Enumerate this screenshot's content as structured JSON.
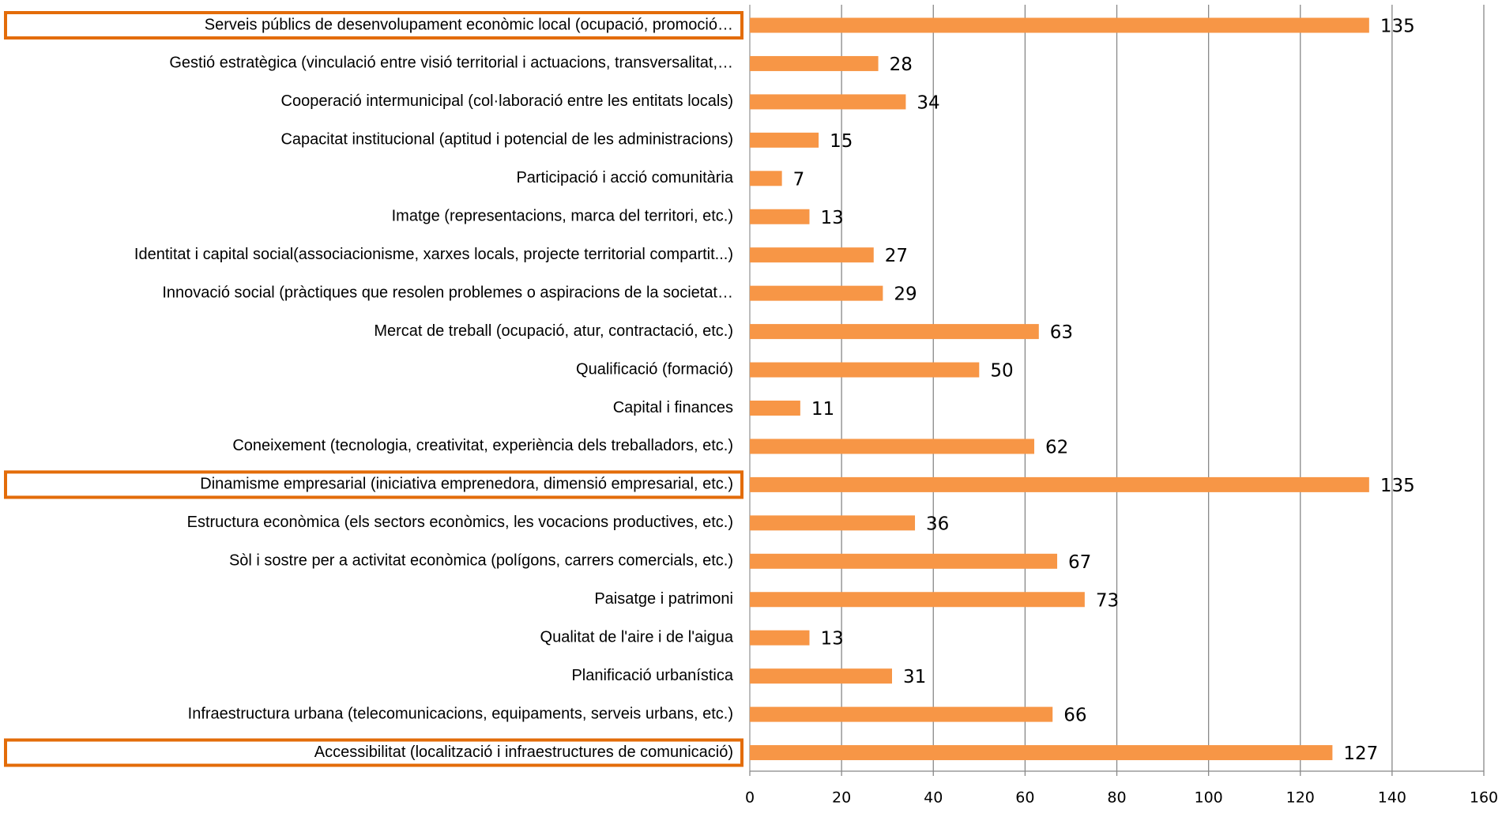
{
  "chart_data": {
    "type": "barh",
    "categories": [
      "Serveis públics de desenvolupament econòmic local (ocupació, promoció…",
      "Gestió estratègica (vinculació entre visió territorial i actuacions, transversalitat,…",
      "Cooperació intermunicipal (col·laboració entre les entitats locals)",
      "Capacitat institucional (aptitud i potencial de les administracions)",
      "Participació i acció comunitària",
      "Imatge (representacions, marca del territori, etc.)",
      "Identitat i capital social(associacionisme, xarxes locals, projecte territorial compartit...)",
      "Innovació social (pràctiques que resolen problemes o aspiracions de la societat…",
      "Mercat de treball (ocupació, atur, contractació, etc.)",
      "Qualificació (formació)",
      "Capital i finances",
      "Coneixement (tecnologia, creativitat, experiència dels treballadors, etc.)",
      "Dinamisme empresarial (iniciativa emprenedora, dimensió empresarial, etc.)",
      "Estructura econòmica (els sectors econòmics, les vocacions productives, etc.)",
      "Sòl i sostre per a activitat econòmica (polígons, carrers comercials, etc.)",
      "Paisatge i patrimoni",
      "Qualitat de l'aire i de l'aigua",
      "Planificació urbanística",
      "Infraestructura urbana (telecomunicacions, equipaments, serveis urbans, etc.)",
      "Accessibilitat (localització i infraestructures de comunicació)"
    ],
    "values": [
      135,
      28,
      34,
      15,
      7,
      13,
      27,
      29,
      63,
      50,
      11,
      62,
      135,
      36,
      67,
      73,
      13,
      31,
      66,
      127
    ],
    "color": "#f79646",
    "highlight": [
      0,
      12,
      19
    ],
    "highlight_color": "#e36c09",
    "xlim": [
      0,
      160
    ],
    "xticks": [
      0,
      20,
      40,
      60,
      80,
      100,
      120,
      140,
      160
    ],
    "grid": true
  }
}
